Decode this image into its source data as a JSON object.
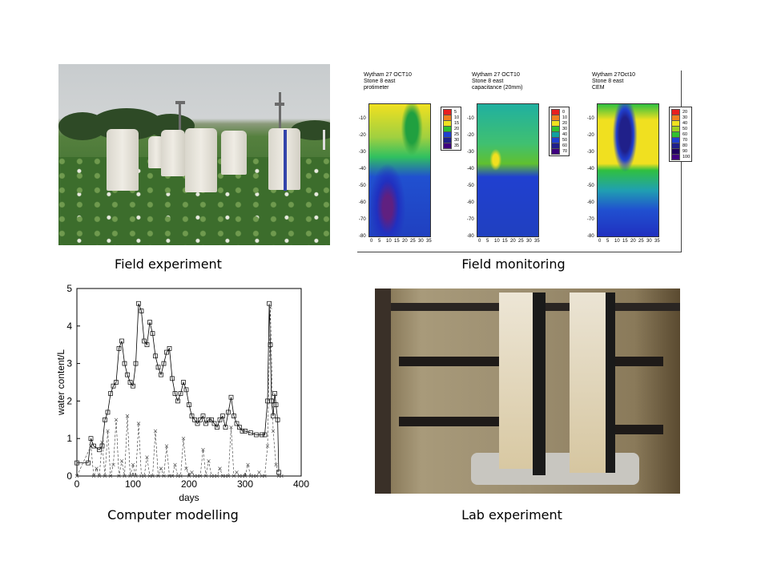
{
  "captions": {
    "field_experiment": "Field experiment",
    "field_monitoring": "Field monitoring",
    "computer_modelling": "Computer modelling",
    "lab_experiment": "Lab experiment"
  },
  "monitoring": {
    "panels": [
      {
        "title": "Wytham 27 OCT10\nStone 8 east\nprotimeter",
        "legend": [
          "5",
          "10",
          "15",
          "20",
          "25",
          "30",
          "35"
        ],
        "colors": [
          "#e82020",
          "#f08020",
          "#f0e020",
          "#30c030",
          "#2040d0",
          "#20208a",
          "#400080"
        ]
      },
      {
        "title": "Wytham 27 OCT10\nStone 8 east\ncapacitance (20mm)",
        "legend": [
          "0",
          "10",
          "20",
          "30",
          "40",
          "50",
          "60",
          "70"
        ],
        "colors": [
          "#e82020",
          "#f08020",
          "#f0e020",
          "#30c030",
          "#10a0a0",
          "#2040d0",
          "#20208a",
          "#400080"
        ]
      },
      {
        "title": "Wytham 27Oct10\nStone 8 east\nCEM",
        "legend": [
          "20",
          "30",
          "40",
          "50",
          "60",
          "70",
          "80",
          "90",
          "100"
        ],
        "colors": [
          "#e82020",
          "#f08020",
          "#f0e020",
          "#a0d020",
          "#30c030",
          "#2040d0",
          "#20208a",
          "#200060",
          "#400080"
        ]
      }
    ],
    "y_ticks": [
      "-10",
      "-20",
      "-30",
      "-40",
      "-50",
      "-60",
      "-70",
      "-80"
    ],
    "x_ticks": [
      "0",
      "5",
      "10",
      "15",
      "20",
      "25",
      "30",
      "35"
    ]
  },
  "chart_data": {
    "type": "line",
    "xlabel": "days",
    "ylabel": "water content/L",
    "xlim": [
      0,
      400
    ],
    "ylim": [
      0,
      5
    ],
    "x_ticks": [
      0,
      100,
      200,
      300,
      400
    ],
    "y_ticks": [
      0,
      1,
      2,
      3,
      4,
      5
    ],
    "series": [
      {
        "marker": "square",
        "x": [
          0,
          20,
          25,
          30,
          40,
          45,
          50,
          55,
          60,
          65,
          70,
          75,
          80,
          85,
          90,
          95,
          100,
          105,
          110,
          115,
          120,
          125,
          130,
          135,
          140,
          145,
          150,
          155,
          160,
          165,
          170,
          175,
          180,
          185,
          190,
          195,
          200,
          205,
          210,
          215,
          220,
          225,
          230,
          235,
          240,
          245,
          250,
          255,
          260,
          265,
          270,
          275,
          280,
          285,
          290,
          295,
          300,
          310,
          320,
          330,
          335,
          340,
          343,
          345,
          347,
          350,
          353,
          355,
          358,
          360
        ],
        "y": [
          0.35,
          0.35,
          1.0,
          0.8,
          0.7,
          0.8,
          1.5,
          1.7,
          2.2,
          2.4,
          2.5,
          3.4,
          3.6,
          3.0,
          2.7,
          2.5,
          2.4,
          3.0,
          4.6,
          4.4,
          3.6,
          3.5,
          4.1,
          3.8,
          3.2,
          2.9,
          2.7,
          3.0,
          3.3,
          3.4,
          2.6,
          2.2,
          2.0,
          2.2,
          2.5,
          2.3,
          1.9,
          1.6,
          1.5,
          1.4,
          1.5,
          1.6,
          1.4,
          1.5,
          1.5,
          1.4,
          1.3,
          1.5,
          1.6,
          1.3,
          1.7,
          2.1,
          1.6,
          1.4,
          1.3,
          1.2,
          1.2,
          1.15,
          1.1,
          1.1,
          1.1,
          2.0,
          4.6,
          3.5,
          2.0,
          1.6,
          2.2,
          1.9,
          1.5,
          0.1
        ]
      },
      {
        "marker": "x",
        "x": [
          0,
          25,
          30,
          35,
          40,
          45,
          50,
          55,
          60,
          65,
          70,
          75,
          80,
          85,
          90,
          95,
          100,
          105,
          110,
          115,
          120,
          125,
          130,
          135,
          140,
          145,
          150,
          155,
          160,
          165,
          170,
          175,
          180,
          185,
          190,
          195,
          200,
          205,
          210,
          215,
          220,
          225,
          230,
          235,
          240,
          245,
          250,
          255,
          260,
          265,
          270,
          275,
          280,
          285,
          290,
          295,
          300,
          305,
          310,
          315,
          320,
          325,
          330,
          335,
          340,
          345,
          350,
          355,
          360,
          365
        ],
        "y": [
          0,
          0.8,
          0,
          0.2,
          0,
          0.9,
          0,
          1.2,
          0,
          0.3,
          1.5,
          0,
          0.4,
          0,
          1.6,
          0,
          0.3,
          0,
          1.4,
          0,
          0,
          0.5,
          0,
          0,
          1.2,
          0,
          0.2,
          0,
          0.8,
          0,
          0,
          0.3,
          0,
          0,
          1.0,
          0.2,
          0,
          0.1,
          0,
          0,
          0,
          0.7,
          0,
          0.4,
          0,
          0,
          0,
          0.2,
          0,
          0,
          0,
          1.3,
          0,
          0.1,
          0,
          0,
          0,
          0.3,
          0,
          0,
          0,
          0.1,
          0,
          0,
          0.8,
          4.5,
          1.2,
          0.3,
          0,
          0
        ]
      }
    ]
  }
}
